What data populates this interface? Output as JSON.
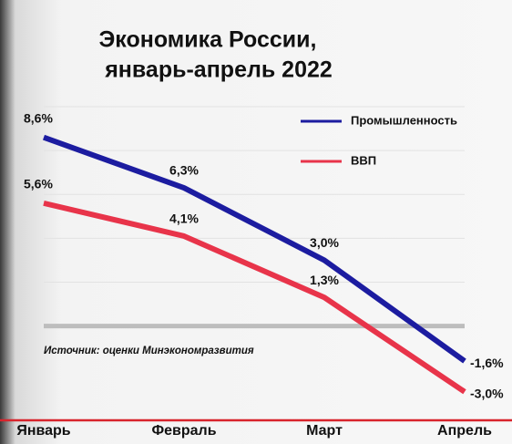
{
  "chart_data": {
    "type": "line",
    "title": [
      "Экономика России,",
      "январь-апрель 2022"
    ],
    "annotation": "Источник: оценки Минэкономразвития",
    "categories": [
      "Январь",
      "Февраль",
      "Март",
      "Апрель"
    ],
    "series": [
      {
        "name": "Промышленность",
        "color": "#1c1ca0",
        "values": [
          8.6,
          6.3,
          3.0,
          -1.6
        ],
        "value_labels": [
          "8,6%",
          "6,3%",
          "3,0%",
          "-1,6%"
        ]
      },
      {
        "name": "ВВП",
        "color": "#e8344a",
        "values": [
          5.6,
          4.1,
          1.3,
          -3.0
        ],
        "value_labels": [
          "5,6%",
          "4,1%",
          "1,3%",
          "-3,0%"
        ]
      }
    ],
    "ylim": [
      -4.3,
      10.5
    ],
    "yticks": [
      0,
      2,
      4,
      6,
      8,
      10
    ],
    "grid": true,
    "legend": "top-right"
  }
}
